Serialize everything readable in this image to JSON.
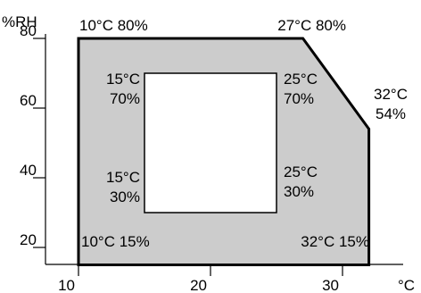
{
  "chart_data": {
    "type": "area",
    "xlabel": "°C",
    "ylabel": "%RH",
    "xlim": [
      10,
      33
    ],
    "ylim": [
      15,
      80
    ],
    "x_ticks": [
      10,
      20,
      30
    ],
    "y_ticks": [
      20,
      40,
      60,
      80
    ],
    "grid": false,
    "series": [
      {
        "points": [
          {
            "x": 10,
            "y": 15
          },
          {
            "x": 10,
            "y": 80
          },
          {
            "x": 27,
            "y": 80
          },
          {
            "x": 32,
            "y": 54
          },
          {
            "x": 32,
            "y": 15
          }
        ],
        "fill": "#cccccc"
      },
      {
        "points": [
          {
            "x": 15,
            "y": 30
          },
          {
            "x": 15,
            "y": 70
          },
          {
            "x": 25,
            "y": 70
          },
          {
            "x": 25,
            "y": 30
          }
        ],
        "fill": "#ffffff"
      }
    ],
    "annotations": [
      {
        "id": "tl-outer",
        "lines": [
          "10°C 80%"
        ]
      },
      {
        "id": "tr-outer",
        "lines": [
          "27°C 80%"
        ]
      },
      {
        "id": "right-outer",
        "lines": [
          "32°C",
          "54%"
        ]
      },
      {
        "id": "bl-outer",
        "lines": [
          "10°C 15%"
        ]
      },
      {
        "id": "br-outer",
        "lines": [
          "32°C 15%"
        ]
      },
      {
        "id": "tl-inner",
        "lines": [
          "15°C",
          "70%"
        ]
      },
      {
        "id": "tr-inner",
        "lines": [
          "25°C",
          "70%"
        ]
      },
      {
        "id": "bl-inner",
        "lines": [
          "15°C",
          "30%"
        ]
      },
      {
        "id": "br-inner",
        "lines": [
          "25°C",
          "30%"
        ]
      }
    ]
  }
}
